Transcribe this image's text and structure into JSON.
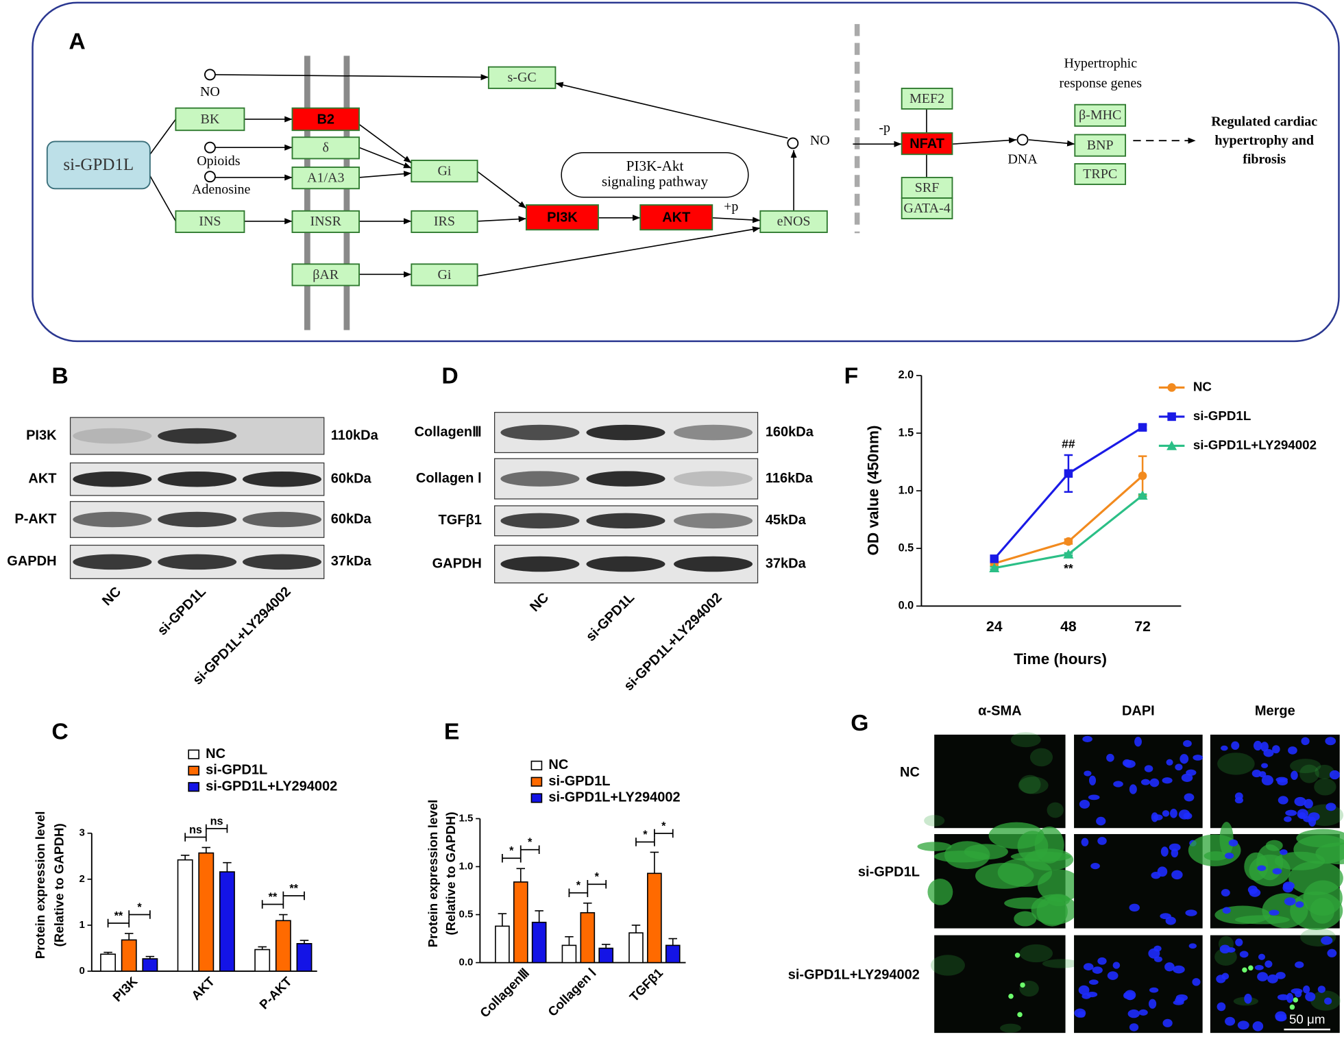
{
  "panel_labels": [
    "A",
    "B",
    "C",
    "D",
    "E",
    "F",
    "G"
  ],
  "pathway": {
    "nodes": [
      "si-GPD1L",
      "BK",
      "B2",
      "s-GC",
      "δ",
      "Gi",
      "A1/A3",
      "INS",
      "INSR",
      "IRS",
      "PI3K",
      "AKT",
      "eNOS",
      "βAR",
      "Gi",
      "MEF2",
      "NFAT",
      "SRF",
      "GATA-4",
      "β-MHC",
      "BNP",
      "TRPC"
    ],
    "small_labels": [
      "NO",
      "Opioids",
      "Adenosine",
      "NO",
      "+p",
      "-p",
      "DNA"
    ],
    "box_label": [
      "PI3K-Akt",
      "signaling pathway"
    ],
    "genes_title": [
      "Hypertrophic",
      "response genes"
    ],
    "outcome": [
      "Regulated cardiac",
      "hypertrophy and",
      "fibrosis"
    ]
  },
  "blots_b": {
    "proteins": [
      "PI3K",
      "AKT",
      "P-AKT",
      "GAPDH"
    ],
    "sizes": [
      "110kDa",
      "60kDa",
      "60kDa",
      "37kDa"
    ],
    "lanes": [
      "NC",
      "si-GPD1L",
      "si-GPD1L+LY294002"
    ]
  },
  "blots_d": {
    "proteins": [
      "CollagenⅢ",
      "Collagen Ⅰ",
      "TGFβ1",
      "GAPDH"
    ],
    "sizes": [
      "160kDa",
      "116kDa",
      "45kDa",
      "37kDa"
    ],
    "lanes": [
      "NC",
      "si-GPD1L",
      "si-GPD1L+LY294002"
    ]
  },
  "chart_data": [
    {
      "type": "bar",
      "y_label": [
        "Protein expression level",
        "(Relative to GAPDH)"
      ],
      "categories": [
        "PI3K",
        "AKT",
        "P-AKT"
      ],
      "series": [
        {
          "name": "NC",
          "color": "#ffffff",
          "values": [
            0.37,
            2.42,
            0.47
          ],
          "errors": [
            0.04,
            0.1,
            0.06
          ]
        },
        {
          "name": "si-GPD1L",
          "color": "#ff6a00",
          "values": [
            0.68,
            2.57,
            1.1
          ],
          "errors": [
            0.14,
            0.12,
            0.13
          ]
        },
        {
          "name": "si-GPD1L+LY294002",
          "color": "#1414e6",
          "values": [
            0.27,
            2.16,
            0.6
          ],
          "errors": [
            0.05,
            0.2,
            0.07
          ]
        }
      ],
      "ylim": [
        0,
        3
      ],
      "yticks": [
        0,
        1,
        2,
        3
      ],
      "annotations": [
        "**",
        "*",
        "ns",
        "ns",
        "**",
        "**"
      ]
    },
    {
      "type": "bar",
      "y_label": [
        "Protein expression level",
        "(Relative to GAPDH)"
      ],
      "categories": [
        "CollagenⅢ",
        "Collagen Ⅰ",
        "TGFβ1"
      ],
      "series": [
        {
          "name": "NC",
          "color": "#ffffff",
          "values": [
            0.38,
            0.18,
            0.31
          ],
          "errors": [
            0.13,
            0.09,
            0.08
          ]
        },
        {
          "name": "si-GPD1L",
          "color": "#ff6a00",
          "values": [
            0.84,
            0.52,
            0.93
          ],
          "errors": [
            0.14,
            0.1,
            0.22
          ]
        },
        {
          "name": "si-GPD1L+LY294002",
          "color": "#1414e6",
          "values": [
            0.42,
            0.15,
            0.18
          ],
          "errors": [
            0.12,
            0.04,
            0.07
          ]
        }
      ],
      "ylim": [
        0,
        1.5
      ],
      "yticks": [
        {
          "value": 0,
          "label": "0.0"
        },
        {
          "value": 0.5,
          "label": "0.5"
        },
        {
          "value": 1,
          "label": "1.0"
        },
        {
          "value": 1.5,
          "label": "1.5"
        }
      ],
      "annotations": [
        "*",
        "*",
        "*",
        "*",
        "*",
        "*"
      ]
    },
    {
      "type": "line",
      "x_label": "Time (hours)",
      "y_label": "OD value (450nm)",
      "categories": [
        "24",
        "48",
        "72"
      ],
      "series": [
        {
          "name": "NC",
          "color": "#f28a1e",
          "marker": "circle",
          "values": [
            0.37,
            0.56,
            1.13
          ],
          "errors": [
            0.02,
            0.02,
            0.17
          ]
        },
        {
          "name": "si-GPD1L",
          "color": "#1a1ae6",
          "marker": "square",
          "values": [
            0.41,
            1.15,
            1.55
          ],
          "errors": [
            0.02,
            0.16,
            0.02
          ]
        },
        {
          "name": "si-GPD1L+LY294002",
          "color": "#2bbf86",
          "marker": "triangle",
          "values": [
            0.33,
            0.45,
            0.96
          ],
          "errors": [
            0.01,
            0.01,
            0.01
          ]
        }
      ],
      "ylim": [
        0,
        2
      ],
      "yticks": [
        {
          "value": 0,
          "label": "0.0"
        },
        {
          "value": 0.5,
          "label": "0.5"
        },
        {
          "value": 1,
          "label": "1.0"
        },
        {
          "value": 1.5,
          "label": "1.5"
        },
        {
          "value": 2,
          "label": "2.0"
        }
      ],
      "annotations": [
        "##",
        "**"
      ]
    }
  ],
  "images": {
    "columns": [
      "α-SMA",
      "DAPI",
      "Merge"
    ],
    "rows": [
      "NC",
      "si-GPD1L",
      "si-GPD1L+LY294002"
    ],
    "scale_bar": "50 μm"
  }
}
